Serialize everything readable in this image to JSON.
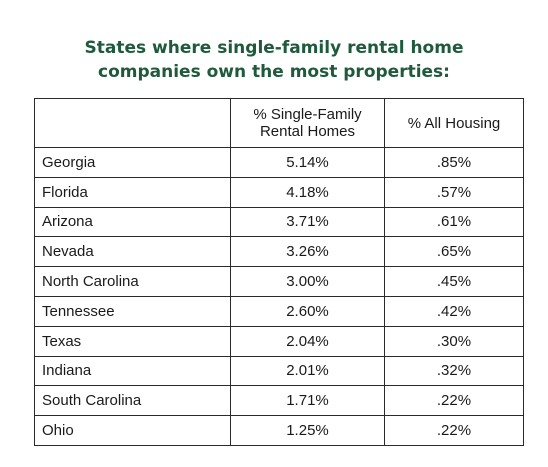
{
  "title": {
    "line1": "States where single-family rental home",
    "line2": "companies own the most properties:"
  },
  "table": {
    "columns": [
      "",
      "% Single-Family Rental Homes",
      "% All Housing"
    ],
    "header": {
      "col1": "",
      "col2_line1": "% Single-Family",
      "col2_line2": "Rental Homes",
      "col3": "% All Housing"
    },
    "rows": [
      {
        "state": "Georgia",
        "sfr": "5.14%",
        "all": ".85%"
      },
      {
        "state": "Florida",
        "sfr": "4.18%",
        "all": ".57%"
      },
      {
        "state": "Arizona",
        "sfr": "3.71%",
        "all": ".61%"
      },
      {
        "state": "Nevada",
        "sfr": "3.26%",
        "all": ".65%"
      },
      {
        "state": "North Carolina",
        "sfr": "3.00%",
        "all": ".45%"
      },
      {
        "state": "Tennessee",
        "sfr": "2.60%",
        "all": ".42%"
      },
      {
        "state": "Texas",
        "sfr": "2.04%",
        "all": ".30%"
      },
      {
        "state": "Indiana",
        "sfr": "2.01%",
        "all": ".32%"
      },
      {
        "state": "South Carolina",
        "sfr": "1.71%",
        "all": ".22%"
      },
      {
        "state": "Ohio",
        "sfr": "1.25%",
        "all": ".22%"
      }
    ]
  },
  "colors": {
    "title": "#1f5a3c",
    "border": "#2a2a2a",
    "text": "#1a1a1a"
  }
}
